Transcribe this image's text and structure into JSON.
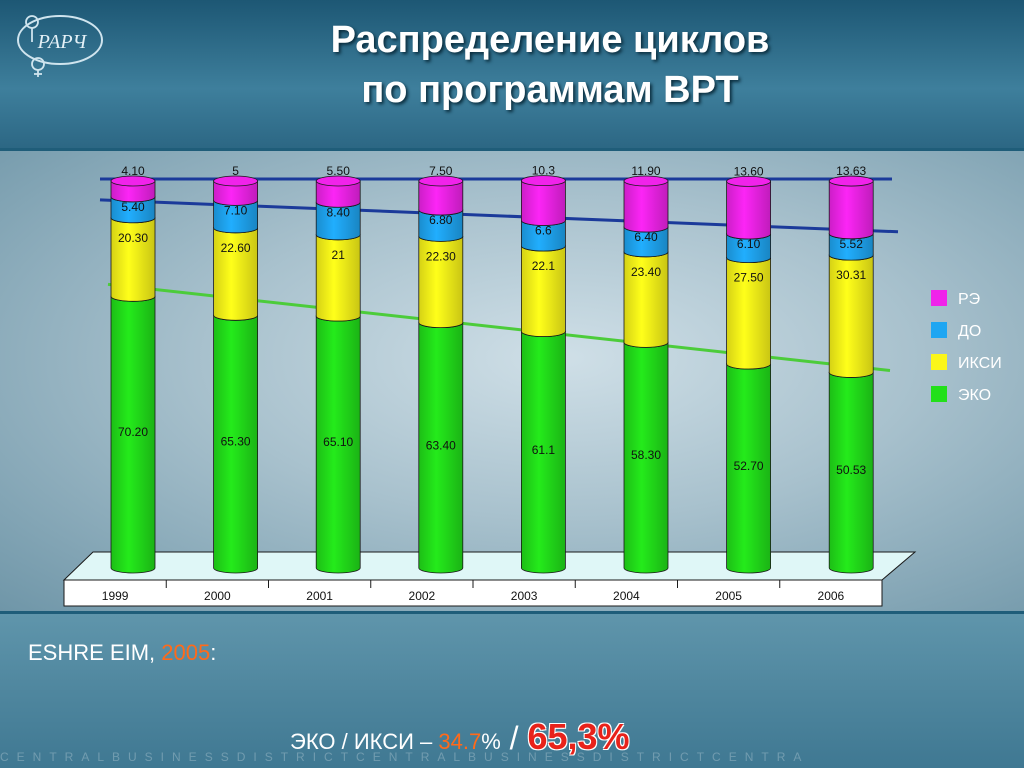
{
  "slide": {
    "title_line1": "Распределение циклов",
    "title_line2": "по программам ВРТ",
    "logo_text": "РАРЧ"
  },
  "footer": {
    "line1_prefix": "ESHRE EIM, ",
    "line1_year": "2005",
    "line1_suffix": ":",
    "line2_prefix": "ЭКО / ИКСИ – ",
    "line2_value": "34.7",
    "line2_pct": "%",
    "line2_slash": " / ",
    "line2_big": "65,3%"
  },
  "watermark": "CENTRALBUSINESSDISTRICTCENTRALBUSINESSDISTRICTCENTRA",
  "chart_data": {
    "type": "bar",
    "stacked": true,
    "categories": [
      "1999",
      "2000",
      "2001",
      "2002",
      "2003",
      "2004",
      "2005",
      "2006"
    ],
    "series": [
      {
        "name": "ЭКО",
        "color": "#22e01a",
        "values": [
          70.2,
          65.3,
          65.1,
          63.4,
          61.1,
          58.3,
          52.7,
          50.53
        ],
        "labels": [
          "70.20",
          "65.30",
          "65.10",
          "63.40",
          "61.1",
          "58.30",
          "52.70",
          "50.53"
        ]
      },
      {
        "name": "ИКСИ",
        "color": "#fbf619",
        "values": [
          20.3,
          22.6,
          21,
          22.3,
          22.1,
          23.4,
          27.5,
          30.31
        ],
        "labels": [
          "20.30",
          "22.60",
          "21",
          "22.30",
          "22.1",
          "23.40",
          "27.50",
          "30.31"
        ]
      },
      {
        "name": "ДО",
        "color": "#1fa6f2",
        "values": [
          5.4,
          7.1,
          8.4,
          6.8,
          6.6,
          6.4,
          6.1,
          5.52
        ],
        "labels": [
          "5.40",
          "7.10",
          "8.40",
          "6.80",
          "6.6",
          "6.40",
          "6.10",
          "5.52"
        ]
      },
      {
        "name": "РЭ",
        "color": "#f023ea",
        "values": [
          4.1,
          5,
          5.5,
          7.5,
          10.3,
          11.9,
          13.6,
          13.63
        ],
        "labels": [
          "4.10",
          "5",
          "5.50",
          "7.50",
          "10.3",
          "11.90",
          "13.60",
          "13.63"
        ]
      }
    ],
    "ylim": [
      0,
      100
    ],
    "legend": [
      "РЭ",
      "ДО",
      "ИКСИ",
      "ЭКО"
    ],
    "legend_position": "right",
    "trendline_colors": [
      "#1b3a9a",
      "#1b3a9a",
      "#4ccc3a"
    ]
  }
}
